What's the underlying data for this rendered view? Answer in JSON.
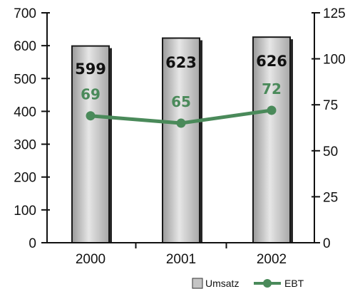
{
  "chart_data": {
    "type": "bar",
    "categories": [
      "2000",
      "2001",
      "2002"
    ],
    "series": [
      {
        "name": "Umsatz",
        "type": "bar",
        "axis": "left",
        "values": [
          599,
          623,
          626
        ],
        "color": "#c4c4c4"
      },
      {
        "name": "EBT",
        "type": "line",
        "axis": "right",
        "values": [
          69,
          65,
          72
        ],
        "color": "#4a8a5a"
      }
    ],
    "left_axis": {
      "ylim": [
        0,
        700
      ],
      "ticks": [
        0,
        100,
        200,
        300,
        400,
        500,
        600,
        700
      ]
    },
    "right_axis": {
      "ylim": [
        0,
        125
      ],
      "ticks": [
        0,
        25,
        50,
        75,
        100,
        125
      ]
    },
    "legend": {
      "placement": "bottom-right",
      "items": [
        "Umsatz",
        "EBT"
      ]
    },
    "grid": false
  }
}
